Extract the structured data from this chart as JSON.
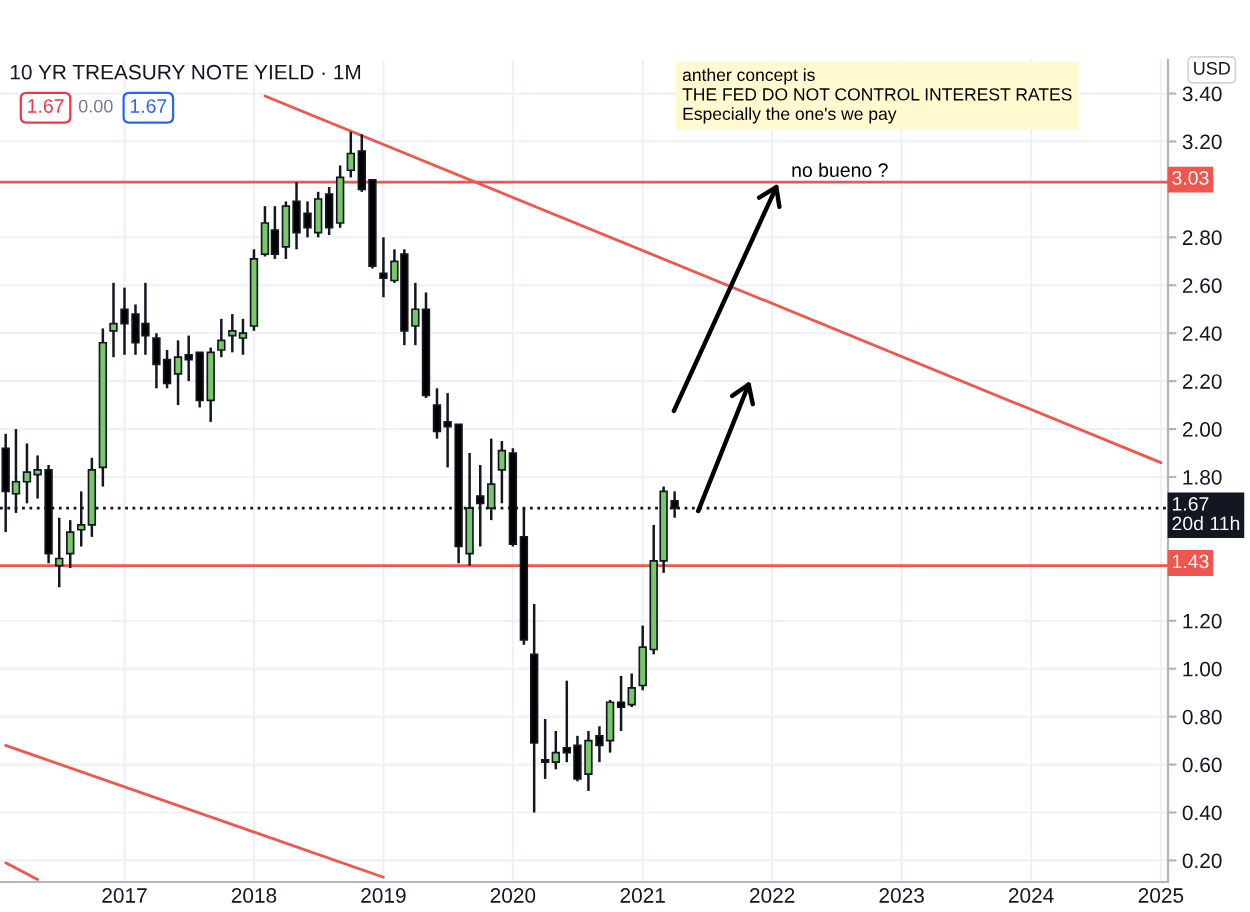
{
  "chart_data": {
    "type": "candlestick",
    "title": "10 YR TREASURY NOTE YIELD · 1M",
    "ylabel": "USD",
    "x": [
      "2016-02",
      "2016-03",
      "2016-04",
      "2016-05",
      "2016-06",
      "2016-07",
      "2016-08",
      "2016-09",
      "2016-10",
      "2016-11",
      "2016-12",
      "2017-01",
      "2017-02",
      "2017-03",
      "2017-04",
      "2017-05",
      "2017-06",
      "2017-07",
      "2017-08",
      "2017-09",
      "2017-10",
      "2017-11",
      "2017-12",
      "2018-01",
      "2018-02",
      "2018-03",
      "2018-04",
      "2018-05",
      "2018-06",
      "2018-07",
      "2018-08",
      "2018-09",
      "2018-10",
      "2018-11",
      "2018-12",
      "2019-01",
      "2019-02",
      "2019-03",
      "2019-04",
      "2019-05",
      "2019-06",
      "2019-07",
      "2019-08",
      "2019-09",
      "2019-10",
      "2019-11",
      "2019-12",
      "2020-01",
      "2020-02",
      "2020-03",
      "2020-04",
      "2020-05",
      "2020-06",
      "2020-07",
      "2020-08",
      "2020-09",
      "2020-10",
      "2020-11",
      "2020-12",
      "2021-01",
      "2021-02",
      "2021-03",
      "2021-04"
    ],
    "ohlc": [
      [
        1.92,
        1.98,
        1.57,
        1.74
      ],
      [
        1.73,
        2.0,
        1.65,
        1.78
      ],
      [
        1.78,
        1.94,
        1.69,
        1.82
      ],
      [
        1.81,
        1.89,
        1.71,
        1.83
      ],
      [
        1.83,
        1.85,
        1.44,
        1.48
      ],
      [
        1.43,
        1.63,
        1.34,
        1.46
      ],
      [
        1.48,
        1.62,
        1.42,
        1.57
      ],
      [
        1.58,
        1.74,
        1.51,
        1.6
      ],
      [
        1.6,
        1.88,
        1.55,
        1.83
      ],
      [
        1.84,
        2.42,
        1.76,
        2.36
      ],
      [
        2.41,
        2.61,
        2.3,
        2.44
      ],
      [
        2.5,
        2.59,
        2.31,
        2.44
      ],
      [
        2.48,
        2.52,
        2.31,
        2.36
      ],
      [
        2.44,
        2.61,
        2.31,
        2.39
      ],
      [
        2.38,
        2.4,
        2.17,
        2.27
      ],
      [
        2.29,
        2.33,
        2.17,
        2.19
      ],
      [
        2.23,
        2.37,
        2.1,
        2.3
      ],
      [
        2.31,
        2.39,
        2.2,
        2.29
      ],
      [
        2.32,
        2.32,
        2.09,
        2.12
      ],
      [
        2.12,
        2.34,
        2.03,
        2.32
      ],
      [
        2.33,
        2.46,
        2.3,
        2.37
      ],
      [
        2.39,
        2.48,
        2.32,
        2.41
      ],
      [
        2.38,
        2.46,
        2.31,
        2.4
      ],
      [
        2.43,
        2.75,
        2.41,
        2.71
      ],
      [
        2.73,
        2.93,
        2.72,
        2.86
      ],
      [
        2.83,
        2.93,
        2.71,
        2.73
      ],
      [
        2.76,
        2.95,
        2.71,
        2.93
      ],
      [
        2.95,
        3.03,
        2.75,
        2.82
      ],
      [
        2.9,
        2.95,
        2.8,
        2.84
      ],
      [
        2.82,
        2.99,
        2.8,
        2.96
      ],
      [
        2.98,
        3.01,
        2.81,
        2.84
      ],
      [
        2.86,
        3.1,
        2.84,
        3.05
      ],
      [
        3.08,
        3.24,
        3.05,
        3.15
      ],
      [
        3.16,
        3.23,
        2.99,
        3.0
      ],
      [
        3.04,
        3.04,
        2.67,
        2.68
      ],
      [
        2.65,
        2.8,
        2.55,
        2.63
      ],
      [
        2.62,
        2.75,
        2.61,
        2.7
      ],
      [
        2.73,
        2.75,
        2.35,
        2.41
      ],
      [
        2.43,
        2.61,
        2.35,
        2.5
      ],
      [
        2.5,
        2.57,
        2.13,
        2.14
      ],
      [
        2.1,
        2.17,
        1.96,
        1.99
      ],
      [
        2.03,
        2.15,
        1.84,
        2.01
      ],
      [
        2.02,
        2.02,
        1.44,
        1.51
      ],
      [
        1.48,
        1.9,
        1.43,
        1.67
      ],
      [
        1.72,
        1.85,
        1.51,
        1.69
      ],
      [
        1.67,
        1.96,
        1.62,
        1.77
      ],
      [
        1.83,
        1.95,
        1.69,
        1.91
      ],
      [
        1.9,
        1.92,
        1.51,
        1.52
      ],
      [
        1.55,
        1.67,
        1.1,
        1.12
      ],
      [
        1.06,
        1.27,
        0.4,
        0.69
      ],
      [
        0.62,
        0.79,
        0.54,
        0.61
      ],
      [
        0.61,
        0.74,
        0.58,
        0.65
      ],
      [
        0.67,
        0.95,
        0.61,
        0.65
      ],
      [
        0.68,
        0.72,
        0.53,
        0.54
      ],
      [
        0.56,
        0.74,
        0.49,
        0.7
      ],
      [
        0.72,
        0.76,
        0.61,
        0.68
      ],
      [
        0.7,
        0.87,
        0.65,
        0.86
      ],
      [
        0.86,
        0.97,
        0.74,
        0.84
      ],
      [
        0.85,
        0.98,
        0.84,
        0.92
      ],
      [
        0.93,
        1.18,
        0.91,
        1.09
      ],
      [
        1.08,
        1.6,
        1.06,
        1.45
      ],
      [
        1.45,
        1.76,
        1.4,
        1.74
      ],
      [
        1.7,
        1.74,
        1.63,
        1.67
      ]
    ],
    "colors": [
      "#000000",
      "#78c86a",
      "#78c86a",
      "#78c86a",
      "#000000",
      "#78c86a",
      "#78c86a",
      "#78c86a",
      "#78c86a",
      "#78c86a",
      "#78c86a",
      "#000000",
      "#000000",
      "#000000",
      "#000000",
      "#000000",
      "#78c86a",
      "#000000",
      "#000000",
      "#78c86a",
      "#78c86a",
      "#78c86a",
      "#78c86a",
      "#78c86a",
      "#78c86a",
      "#000000",
      "#78c86a",
      "#000000",
      "#000000",
      "#78c86a",
      "#000000",
      "#78c86a",
      "#78c86a",
      "#000000",
      "#000000",
      "#000000",
      "#78c86a",
      "#000000",
      "#78c86a",
      "#000000",
      "#000000",
      "#000000",
      "#000000",
      "#78c86a",
      "#000000",
      "#78c86a",
      "#78c86a",
      "#000000",
      "#000000",
      "#000000",
      "#000000",
      "#78c86a",
      "#000000",
      "#000000",
      "#78c86a",
      "#000000",
      "#78c86a",
      "#000000",
      "#78c86a",
      "#78c86a",
      "#78c86a",
      "#78c86a",
      "#000000"
    ],
    "series": [
      {
        "type": "line",
        "x": [
          "2018-02",
          "2025-01"
        ],
        "values": [
          3.39,
          1.86
        ],
        "color": "#f0564e"
      },
      {
        "type": "line",
        "x": [
          "2016-02",
          "2019-01"
        ],
        "values": [
          0.68,
          0.13
        ],
        "color": "#f0564e"
      },
      {
        "type": "line",
        "x": [
          "2016-02",
          "2016-05"
        ],
        "values": [
          0.19,
          0.12
        ],
        "color": "#f0564e"
      }
    ],
    "xlim": [
      "2016-01-16",
      "2025-01-21"
    ],
    "xticks": [
      "2017",
      "2018",
      "2019",
      "2020",
      "2021",
      "2022",
      "2023",
      "2024",
      "2025"
    ],
    "ylim": [
      0.11,
      3.54
    ],
    "yticks": [
      {
        "value": 0.2,
        "label": "0.20"
      },
      {
        "value": 0.4,
        "label": "0.40"
      },
      {
        "value": 0.6,
        "label": "0.60"
      },
      {
        "value": 0.8,
        "label": "0.80"
      },
      {
        "value": 1.0,
        "label": "1.00"
      },
      {
        "value": 1.2,
        "label": "1.20"
      },
      {
        "value": 1.8,
        "label": "1.80"
      },
      {
        "value": 2.0,
        "label": "2.00"
      },
      {
        "value": 2.2,
        "label": "2.20"
      },
      {
        "value": 2.4,
        "label": "2.40"
      },
      {
        "value": 2.6,
        "label": "2.60"
      },
      {
        "value": 2.8,
        "label": "2.80"
      },
      {
        "value": 3.2,
        "label": "3.20"
      },
      {
        "value": 3.4,
        "label": "3.40"
      }
    ],
    "grid": true,
    "ref_lines": [
      {
        "axis": "y",
        "value": 3.03,
        "label": "3.03",
        "color": "#f0564e"
      },
      {
        "axis": "y",
        "value": 1.43,
        "label": "1.43",
        "color": "#f0564e"
      },
      {
        "axis": "y",
        "value": 1.67,
        "label": "1.67\n20d 11h",
        "color": "#131722",
        "line_style": "dotted"
      }
    ],
    "annotations": [
      "1.67",
      "0.00",
      "1.67",
      "anther concept is\nTHE FED DO NOT CONTROL INTEREST RATES\nEspecially the one's we pay",
      "no bueno ?"
    ]
  }
}
